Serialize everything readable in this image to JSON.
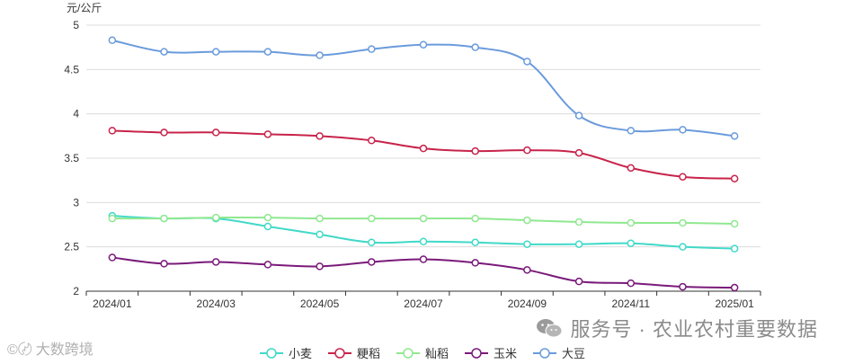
{
  "chart_data": {
    "type": "line",
    "ylabel": "元/公斤",
    "ylim": [
      2,
      5
    ],
    "yticks": [
      "2",
      "2.5",
      "3",
      "3.5",
      "4",
      "4.5",
      "5"
    ],
    "ytick_values": [
      2,
      2.5,
      3,
      3.5,
      4,
      4.5,
      5
    ],
    "xticks": [
      "2024/01",
      "2024/03",
      "2024/05",
      "2024/07",
      "2024/09",
      "2024/11",
      "2025/01"
    ],
    "x": [
      "2024/01",
      "2024/02",
      "2024/03",
      "2024/04",
      "2024/05",
      "2024/06",
      "2024/07",
      "2024/08",
      "2024/09",
      "2024/10",
      "2024/11",
      "2024/12",
      "2025/01"
    ],
    "grid": true,
    "legend_position": "bottom",
    "series": [
      {
        "name": "小麦",
        "color": "#40d9c8",
        "values": [
          2.85,
          2.82,
          2.82,
          2.73,
          2.64,
          2.55,
          2.56,
          2.55,
          2.53,
          2.53,
          2.54,
          2.5,
          2.48
        ]
      },
      {
        "name": "粳稻",
        "color": "#c8234a",
        "values": [
          3.81,
          3.79,
          3.79,
          3.77,
          3.75,
          3.7,
          3.61,
          3.58,
          3.59,
          3.56,
          3.39,
          3.29,
          3.27
        ]
      },
      {
        "name": "籼稻",
        "color": "#90e890",
        "values": [
          2.82,
          2.82,
          2.83,
          2.83,
          2.82,
          2.82,
          2.82,
          2.82,
          2.8,
          2.78,
          2.77,
          2.77,
          2.76
        ]
      },
      {
        "name": "玉米",
        "color": "#7a1a7a",
        "values": [
          2.38,
          2.31,
          2.33,
          2.3,
          2.28,
          2.33,
          2.36,
          2.32,
          2.24,
          2.11,
          2.09,
          2.05,
          2.04
        ]
      },
      {
        "name": "大豆",
        "color": "#6a9bdc",
        "values": [
          4.83,
          4.7,
          4.7,
          4.7,
          4.66,
          4.73,
          4.78,
          4.75,
          4.59,
          3.98,
          3.81,
          3.82,
          3.75
        ]
      }
    ]
  },
  "watermark": {
    "main": "服务号 · 农业农村重要数据",
    "left": "大数跨境"
  }
}
